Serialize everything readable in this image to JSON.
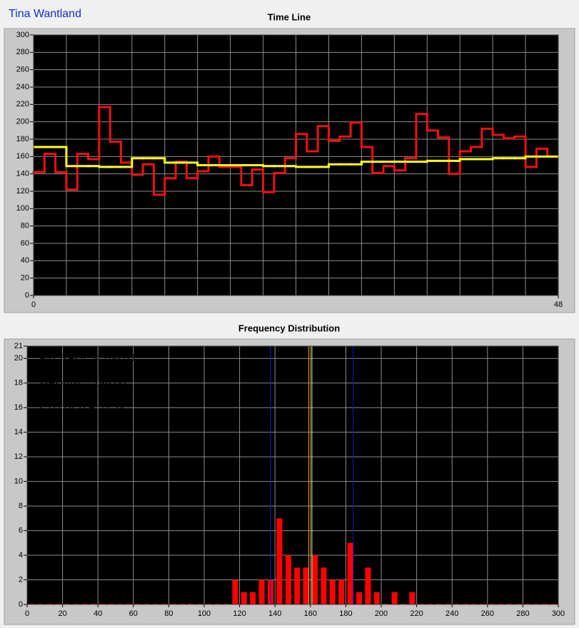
{
  "header": {
    "title": "Tina Wantland"
  },
  "charts": [
    {
      "type": "step",
      "title": "Time Line",
      "xlim": [
        0,
        48
      ],
      "xticks": [
        0,
        48
      ],
      "xgrid_ticks": [
        0,
        3,
        6,
        9,
        12,
        15,
        18,
        21,
        24,
        27,
        30,
        33,
        36,
        39,
        42,
        45,
        48
      ],
      "ylim": [
        0,
        300
      ],
      "yticks": [
        0,
        20,
        40,
        60,
        80,
        100,
        120,
        140,
        160,
        180,
        200,
        220,
        240,
        260,
        280,
        300
      ],
      "grid": true,
      "series": [
        {
          "color": "#ee1111",
          "values": [
            142,
            163,
            142,
            122,
            163,
            157,
            217,
            177,
            153,
            139,
            151,
            116,
            135,
            154,
            135,
            143,
            160,
            148,
            148,
            127,
            145,
            119,
            141,
            158,
            186,
            166,
            195,
            178,
            183,
            199,
            171,
            141,
            149,
            144,
            158,
            209,
            190,
            182,
            140,
            166,
            171,
            192,
            185,
            181,
            183,
            148,
            169,
            160
          ]
        },
        {
          "color": "#ffff22",
          "values": [
            171,
            171,
            171,
            149,
            149,
            149,
            148,
            148,
            148,
            158,
            158,
            158,
            153,
            153,
            153,
            150,
            150,
            150,
            150,
            150,
            150,
            149,
            149,
            149,
            148,
            148,
            148,
            151,
            151,
            151,
            154,
            154,
            154,
            154,
            154,
            154,
            155,
            155,
            155,
            157,
            157,
            157,
            158,
            158,
            158,
            160,
            160,
            160
          ]
        }
      ]
    },
    {
      "type": "histogram",
      "title": "Frequency Distribution",
      "color": "#ff0000",
      "bins": [
        0,
        5,
        10,
        15,
        20,
        25,
        30,
        35,
        40,
        45,
        50,
        55,
        60,
        65,
        70,
        75,
        80,
        85,
        90,
        95,
        100,
        105,
        110,
        115,
        120,
        125,
        130,
        135,
        140,
        145,
        150,
        155,
        160,
        165,
        170,
        175,
        180,
        185,
        190,
        195,
        200,
        205,
        210,
        215,
        220,
        225,
        230,
        235,
        240,
        245,
        250,
        255,
        260,
        265,
        270,
        275,
        280,
        285,
        290,
        295,
        300
      ],
      "counts": [
        0,
        0,
        0,
        0,
        0,
        0,
        0,
        0,
        0,
        0,
        0,
        0,
        0,
        0,
        0,
        0,
        0,
        0,
        0,
        0,
        0,
        0,
        0,
        2,
        1,
        1,
        2,
        2,
        7,
        4,
        3,
        3,
        4,
        3,
        2,
        2,
        5,
        1,
        3,
        1,
        0,
        1,
        0,
        1,
        0,
        0,
        0,
        0,
        0,
        0,
        0,
        0,
        0,
        0,
        0,
        0,
        0,
        0,
        0,
        0
      ],
      "xlim": [
        0,
        300
      ],
      "xticks": [
        0,
        20,
        40,
        60,
        80,
        100,
        120,
        140,
        160,
        180,
        200,
        220,
        240,
        260,
        280,
        300
      ],
      "ylim": [
        0,
        21
      ],
      "yticks": [
        0,
        2,
        4,
        6,
        8,
        10,
        12,
        14,
        16,
        18,
        20,
        21
      ],
      "grid": true,
      "stats": {
        "average": {
          "label": "AVERAGE = 160.83",
          "value": 160.83,
          "color": "#ffff66"
        },
        "median": {
          "label": "MEDIAN = 159.00",
          "value": 159.0,
          "color": "#ff9a20"
        },
        "std_dev": {
          "label": "STD DEV = 23.34",
          "value": 23.34,
          "color": "#1a1ad0"
        }
      }
    }
  ]
}
